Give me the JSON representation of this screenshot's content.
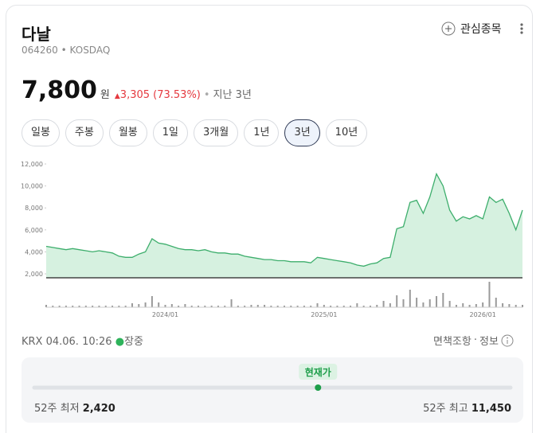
{
  "header": {
    "name": "다날",
    "code": "064260",
    "market": "KOSDAQ",
    "watch_button": "관심종목"
  },
  "price": {
    "value": 7800,
    "label": "7,800"
  },
  "unit": "원",
  "change": "3,305",
  "change_percent": "(73.53%)",
  "period": "지난 3년",
  "tabs": [
    "일봉",
    "주봉",
    "월봉",
    "1일",
    "3개월",
    "1년",
    "3년",
    "10년"
  ],
  "selected_tab": 6,
  "chart_data": {
    "type": "line",
    "categories": [
      null,
      null,
      null,
      null,
      null,
      null,
      null,
      null,
      null,
      null,
      null,
      null,
      null,
      null,
      null,
      null,
      null,
      null,
      "2024/01",
      null,
      null,
      null,
      null,
      null,
      null,
      null,
      null,
      null,
      null,
      null,
      null,
      null,
      null,
      null,
      null,
      null,
      null,
      null,
      null,
      null,
      null,
      null,
      "2025/01",
      null,
      null,
      null,
      null,
      null,
      null,
      null,
      null,
      null,
      null,
      null,
      null,
      null,
      null,
      null,
      null,
      null,
      null,
      null,
      null,
      null,
      null,
      null,
      "2026/01",
      null,
      null,
      null,
      null,
      null,
      null
    ],
    "values": [
      4500,
      4400,
      4300,
      4200,
      4300,
      4200,
      4100,
      4000,
      4100,
      4000,
      3900,
      3600,
      3500,
      3500,
      3800,
      4000,
      5200,
      4800,
      4700,
      4500,
      4300,
      4200,
      4200,
      4100,
      4200,
      4000,
      3900,
      3900,
      3800,
      3800,
      3600,
      3500,
      3400,
      3300,
      3300,
      3200,
      3200,
      3100,
      3100,
      3100,
      3000,
      3500,
      3400,
      3300,
      3200,
      3100,
      3000,
      2800,
      2700,
      2900,
      3000,
      3400,
      3500,
      6100,
      6300,
      8500,
      8700,
      7500,
      9000,
      11100,
      10000,
      7800,
      6800,
      7200,
      7000,
      7300,
      7000,
      9000,
      8500,
      8800,
      7500,
      6000,
      7800
    ],
    "color": "#3dae6c",
    "fill_color": "#d6f1e0",
    "ylim": [
      1640,
      12000
    ],
    "yticks": [
      {
        "value": 2000,
        "label": "2,000"
      },
      {
        "value": 4000,
        "label": "4,000"
      },
      {
        "value": 6000,
        "label": "6,000"
      },
      {
        "value": 8000,
        "label": "8,000"
      },
      {
        "value": 10000,
        "label": "10,000"
      },
      {
        "value": 12000,
        "label": "12,000"
      }
    ],
    "volume": {
      "color": "#9a9a9a",
      "ylim": [
        0,
        35
      ],
      "values": [
        3,
        2,
        2,
        2,
        2,
        2,
        2,
        2,
        2,
        2,
        2,
        2,
        2,
        5,
        4,
        6,
        14,
        6,
        3,
        4,
        2,
        4,
        2,
        2,
        2,
        2,
        2,
        2,
        10,
        2,
        2,
        3,
        3,
        3,
        2,
        2,
        2,
        2,
        2,
        2,
        2,
        5,
        3,
        2,
        2,
        2,
        2,
        5,
        2,
        2,
        3,
        8,
        5,
        15,
        10,
        22,
        12,
        6,
        10,
        14,
        18,
        8,
        3,
        5,
        3,
        4,
        6,
        32,
        12,
        5,
        4,
        3,
        3
      ]
    }
  },
  "footer": {
    "source_time": "KRX 04.06. 10:26",
    "status": "장중",
    "disclaimer": "면책조항",
    "info": "정보"
  },
  "range": {
    "current_label": "현재가",
    "low_label": "52주 최저",
    "low": {
      "value": 2420,
      "label": "2,420"
    },
    "high_label": "52주 최고",
    "high": {
      "value": 11450,
      "label": "11,450"
    }
  }
}
